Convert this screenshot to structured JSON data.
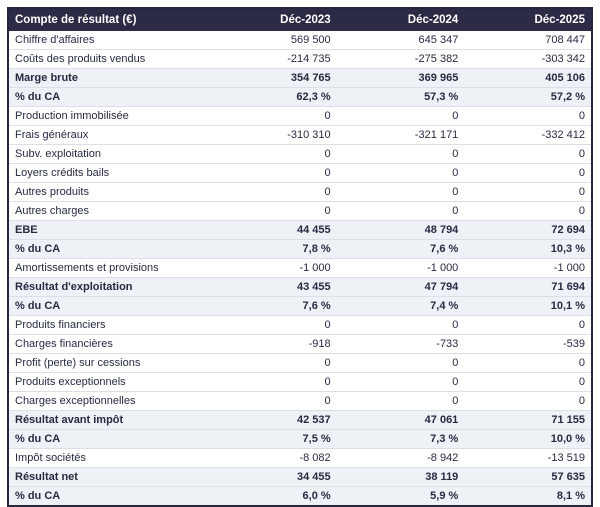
{
  "table": {
    "title": "Compte de résultat (€)",
    "columns": [
      "Compte de résultat (€)",
      "Déc-2023",
      "Déc-2024",
      "Déc-2025"
    ],
    "rows": [
      {
        "label": "Chiffre d'affaires",
        "values": [
          "569 500",
          "645 347",
          "708 447"
        ],
        "style": "normal"
      },
      {
        "label": "Coûts des produits vendus",
        "values": [
          "-214 735",
          "-275 382",
          "-303 342"
        ],
        "style": "normal"
      },
      {
        "label": "Marge brute",
        "values": [
          "354 765",
          "369 965",
          "405 106"
        ],
        "style": "highlight"
      },
      {
        "label": "% du CA",
        "values": [
          "62,3 %",
          "57,3 %",
          "57,2 %"
        ],
        "style": "highlight"
      },
      {
        "label": "Production immobilisée",
        "values": [
          "0",
          "0",
          "0"
        ],
        "style": "normal"
      },
      {
        "label": "Frais généraux",
        "values": [
          "-310 310",
          "-321 171",
          "-332 412"
        ],
        "style": "normal"
      },
      {
        "label": "Subv. exploitation",
        "values": [
          "0",
          "0",
          "0"
        ],
        "style": "normal"
      },
      {
        "label": "Loyers crédits bails",
        "values": [
          "0",
          "0",
          "0"
        ],
        "style": "normal"
      },
      {
        "label": "Autres produits",
        "values": [
          "0",
          "0",
          "0"
        ],
        "style": "normal"
      },
      {
        "label": "Autres charges",
        "values": [
          "0",
          "0",
          "0"
        ],
        "style": "normal"
      },
      {
        "label": "EBE",
        "values": [
          "44 455",
          "48 794",
          "72 694"
        ],
        "style": "highlight"
      },
      {
        "label": "% du CA",
        "values": [
          "7,8 %",
          "7,6 %",
          "10,3 %"
        ],
        "style": "highlight"
      },
      {
        "label": "Amortissements et provisions",
        "values": [
          "-1 000",
          "-1 000",
          "-1 000"
        ],
        "style": "normal"
      },
      {
        "label": "Résultat d'exploitation",
        "values": [
          "43 455",
          "47 794",
          "71 694"
        ],
        "style": "highlight"
      },
      {
        "label": "% du CA",
        "values": [
          "7,6 %",
          "7,4 %",
          "10,1 %"
        ],
        "style": "highlight"
      },
      {
        "label": "Produits financiers",
        "values": [
          "0",
          "0",
          "0"
        ],
        "style": "normal"
      },
      {
        "label": "Charges financières",
        "values": [
          "-918",
          "-733",
          "-539"
        ],
        "style": "normal"
      },
      {
        "label": "Profit (perte) sur cessions",
        "values": [
          "0",
          "0",
          "0"
        ],
        "style": "normal"
      },
      {
        "label": "Produits exceptionnels",
        "values": [
          "0",
          "0",
          "0"
        ],
        "style": "normal"
      },
      {
        "label": "Charges exceptionnelles",
        "values": [
          "0",
          "0",
          "0"
        ],
        "style": "normal"
      },
      {
        "label": "Résultat avant impôt",
        "values": [
          "42 537",
          "47 061",
          "71 155"
        ],
        "style": "highlight"
      },
      {
        "label": "% du CA",
        "values": [
          "7,5 %",
          "7,3 %",
          "10,0 %"
        ],
        "style": "highlight"
      },
      {
        "label": "Impôt sociétés",
        "values": [
          "-8 082",
          "-8 942",
          "-13 519"
        ],
        "style": "normal"
      },
      {
        "label": "Résultat net",
        "values": [
          "34 455",
          "38 119",
          "57 635"
        ],
        "style": "highlight"
      },
      {
        "label": "% du CA",
        "values": [
          "6,0 %",
          "5,9 %",
          "8,1 %"
        ],
        "style": "highlight"
      }
    ],
    "colors": {
      "header_bg": "#2b2b45",
      "header_text": "#ffffff",
      "highlight_bg": "#eef1f6",
      "row_border": "#dcdfe5",
      "body_text": "#262b40",
      "outer_border": "#26263e"
    }
  },
  "chart_data": {
    "type": "table",
    "title": "Compte de résultat (€)",
    "categories": [
      "Déc-2023",
      "Déc-2024",
      "Déc-2025"
    ],
    "series": [
      {
        "name": "Chiffre d'affaires",
        "values": [
          569500,
          645347,
          708447
        ]
      },
      {
        "name": "Coûts des produits vendus",
        "values": [
          -214735,
          -275382,
          -303342
        ]
      },
      {
        "name": "Marge brute",
        "values": [
          354765,
          369965,
          405106
        ]
      },
      {
        "name": "Marge brute % du CA",
        "values": [
          62.3,
          57.3,
          57.2
        ]
      },
      {
        "name": "Production immobilisée",
        "values": [
          0,
          0,
          0
        ]
      },
      {
        "name": "Frais généraux",
        "values": [
          -310310,
          -321171,
          -332412
        ]
      },
      {
        "name": "Subv. exploitation",
        "values": [
          0,
          0,
          0
        ]
      },
      {
        "name": "Loyers crédits bails",
        "values": [
          0,
          0,
          0
        ]
      },
      {
        "name": "Autres produits",
        "values": [
          0,
          0,
          0
        ]
      },
      {
        "name": "Autres charges",
        "values": [
          0,
          0,
          0
        ]
      },
      {
        "name": "EBE",
        "values": [
          44455,
          48794,
          72694
        ]
      },
      {
        "name": "EBE % du CA",
        "values": [
          7.8,
          7.6,
          10.3
        ]
      },
      {
        "name": "Amortissements et provisions",
        "values": [
          -1000,
          -1000,
          -1000
        ]
      },
      {
        "name": "Résultat d'exploitation",
        "values": [
          43455,
          47794,
          71694
        ]
      },
      {
        "name": "Résultat d'exploitation % du CA",
        "values": [
          7.6,
          7.4,
          10.1
        ]
      },
      {
        "name": "Produits financiers",
        "values": [
          0,
          0,
          0
        ]
      },
      {
        "name": "Charges financières",
        "values": [
          -918,
          -733,
          -539
        ]
      },
      {
        "name": "Profit (perte) sur cessions",
        "values": [
          0,
          0,
          0
        ]
      },
      {
        "name": "Produits exceptionnels",
        "values": [
          0,
          0,
          0
        ]
      },
      {
        "name": "Charges exceptionnelles",
        "values": [
          0,
          0,
          0
        ]
      },
      {
        "name": "Résultat avant impôt",
        "values": [
          42537,
          47061,
          71155
        ]
      },
      {
        "name": "Résultat avant impôt % du CA",
        "values": [
          7.5,
          7.3,
          10.0
        ]
      },
      {
        "name": "Impôt sociétés",
        "values": [
          -8082,
          -8942,
          -13519
        ]
      },
      {
        "name": "Résultat net",
        "values": [
          34455,
          38119,
          57635
        ]
      },
      {
        "name": "Résultat net % du CA",
        "values": [
          6.0,
          5.9,
          8.1
        ]
      }
    ]
  }
}
